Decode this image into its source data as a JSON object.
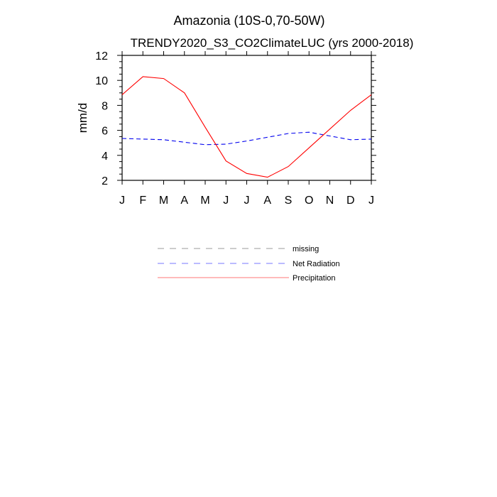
{
  "chart_data": {
    "type": "line",
    "title": "Amazonia (10S-0,70-50W)",
    "subtitle": "TRENDY2020_S3_CO2ClimateLUC (yrs 2000-2018)",
    "xlabel": "",
    "ylabel": "mm/d",
    "categories": [
      "J",
      "F",
      "M",
      "A",
      "M",
      "J",
      "J",
      "A",
      "S",
      "O",
      "N",
      "D",
      "J"
    ],
    "ylim": [
      2,
      12
    ],
    "yticks": [
      2,
      4,
      6,
      8,
      10,
      12
    ],
    "grid": false,
    "series": [
      {
        "name": "Net Radiation",
        "color": "#0000ee",
        "dash": "dashed",
        "values": [
          5.35,
          5.3,
          5.25,
          5.05,
          4.85,
          4.9,
          5.15,
          5.45,
          5.75,
          5.85,
          5.55,
          5.25,
          5.3
        ]
      },
      {
        "name": "Precipitation",
        "color": "#ff0000",
        "dash": "solid",
        "values": [
          8.85,
          10.3,
          10.15,
          9.0,
          6.25,
          3.55,
          2.55,
          2.25,
          3.1,
          4.6,
          6.1,
          7.6,
          8.85
        ]
      }
    ],
    "legend": {
      "placement": "below",
      "entries": [
        {
          "label": "missing",
          "color": "#999999",
          "dash": "dashed"
        },
        {
          "label": "Net Radiation",
          "color": "#7777ff",
          "dash": "dashed"
        },
        {
          "label": "Precipitation",
          "color": "#ff7777",
          "dash": "solid"
        }
      ]
    }
  }
}
